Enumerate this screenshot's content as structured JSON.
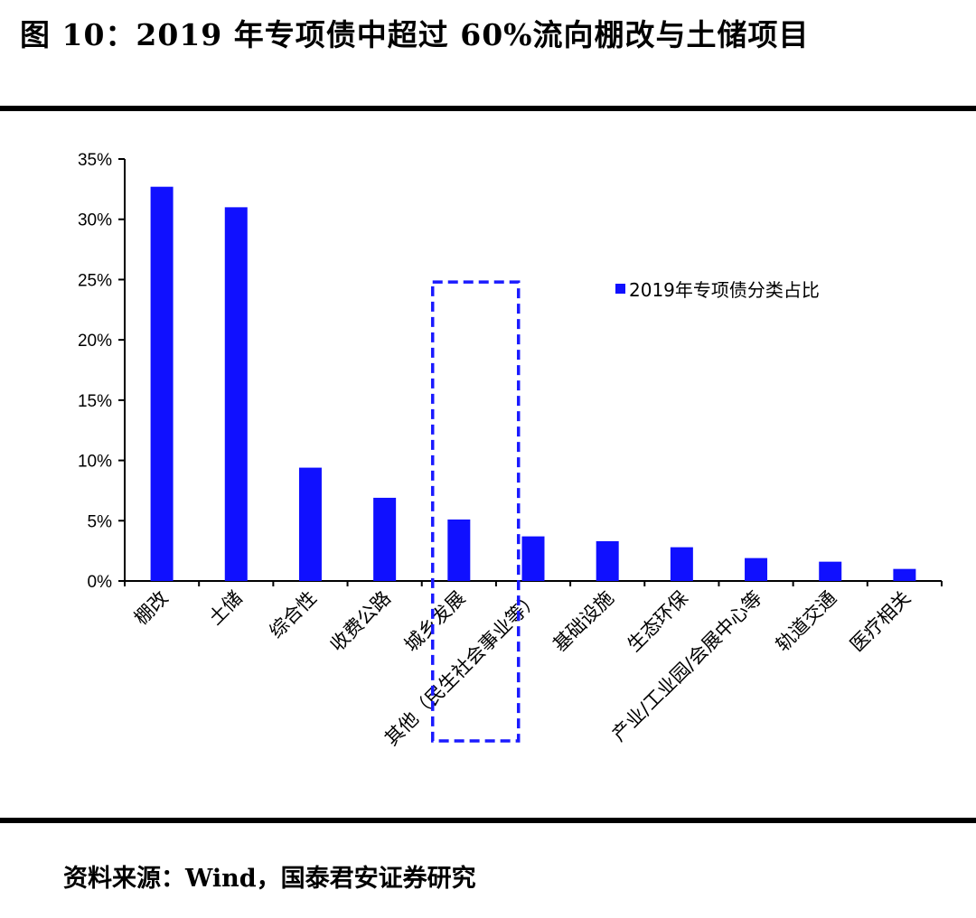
{
  "title": "图 10：2019 年专项债中超过 60%流向棚改与土储项目",
  "source": "资料来源：Wind，国泰君安证券研究",
  "colors": {
    "bar": "#1010ff",
    "highlight_box": "#1a1aff",
    "axis": "#000000"
  },
  "chart_data": {
    "type": "bar",
    "title": "",
    "xlabel": "",
    "ylabel": "",
    "ylim": [
      0,
      35
    ],
    "yticks": [
      0,
      5,
      10,
      15,
      20,
      25,
      30,
      35
    ],
    "ytick_labels": [
      "0%",
      "5%",
      "10%",
      "15%",
      "20%",
      "25%",
      "30%",
      "35%"
    ],
    "categories": [
      "棚改",
      "土储",
      "综合性",
      "收费公路",
      "城乡发展",
      "其他（民生社会事业等）",
      "基础设施",
      "生态环保",
      "产业/工业园/会展中心等",
      "轨道交通",
      "医疗相关"
    ],
    "series": [
      {
        "name": "2019年专项债分类占比",
        "values": [
          32.7,
          31.0,
          9.4,
          6.9,
          5.1,
          3.7,
          3.3,
          2.8,
          1.9,
          1.6,
          1.0
        ]
      }
    ],
    "legend_position": "top-right",
    "grid": false,
    "highlight_categories": [
      "城乡发展",
      "其他（民生社会事业等）"
    ]
  }
}
